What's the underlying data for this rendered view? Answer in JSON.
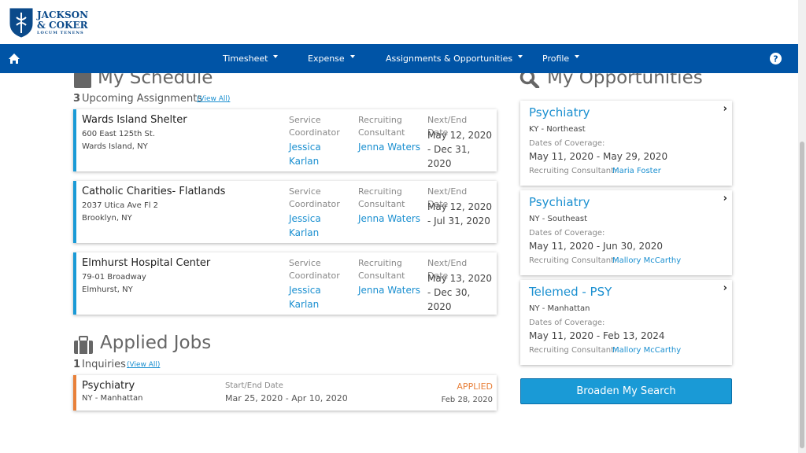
{
  "header": {
    "logo_line1": "JACKSON",
    "logo_line2": "& COKER",
    "logo_line3": "LOCUM TENENS"
  },
  "nav": {
    "items": [
      "Timesheet",
      "Expense",
      "Assignments & Opportunities",
      "Profile"
    ]
  },
  "schedule": {
    "title": "My Schedule",
    "count": "3",
    "count_label": "Upcoming Assignments",
    "view_all": "(View All)",
    "assignments": [
      {
        "name": "Wards Island Shelter",
        "address1": "600 East 125th St.",
        "address2": "Wards Island, NY",
        "coordinator_label": "Service Coordinator",
        "coordinator": "Jessica Karlan",
        "consultant_label": "Recruiting Consultant",
        "consultant": "Jenna Waters",
        "date_label": "Next/End Date",
        "dates": "May 12, 2020 - Dec 31, 2020"
      },
      {
        "name": "Catholic Charities- Flatlands",
        "address1": "2037 Utica Ave Fl 2",
        "address2": "Brooklyn, NY",
        "coordinator_label": "Service Coordinator",
        "coordinator": "Jessica Karlan",
        "consultant_label": "Recruiting Consultant",
        "consultant": "Jenna Waters",
        "date_label": "Next/End Date",
        "dates": "May 12, 2020 - Jul 31, 2020"
      },
      {
        "name": "Elmhurst Hospital Center",
        "address1": "79-01 Broadway",
        "address2": "Elmhurst, NY",
        "coordinator_label": "Service Coordinator",
        "coordinator": "Jessica Karlan",
        "consultant_label": "Recruiting Consultant",
        "consultant": "Jenna Waters",
        "date_label": "Next/End Date",
        "dates": "May 13, 2020 - Dec 30, 2020"
      }
    ]
  },
  "applied": {
    "title": "Applied Jobs",
    "count": "1",
    "count_label": "Inquiries",
    "view_all": "(View All)",
    "jobs": [
      {
        "title": "Psychiatry",
        "location": "NY - Manhattan",
        "date_label": "Start/End Date",
        "dates": "Mar 25, 2020 - Apr 10, 2020",
        "status": "APPLIED",
        "status_date": "Feb 28, 2020"
      }
    ]
  },
  "opportunities": {
    "title": "My Opportunities",
    "items": [
      {
        "title": "Psychiatry",
        "region": "KY - Northeast",
        "coverage_label": "Dates of Coverage:",
        "dates": "May 11, 2020 - May 29, 2020",
        "consultant_label": "Recruiting Consultant:",
        "consultant": "Maria Foster"
      },
      {
        "title": "Psychiatry",
        "region": "NY - Southeast",
        "coverage_label": "Dates of Coverage:",
        "dates": "May 11, 2020 - Jun 30, 2020",
        "consultant_label": "Recruiting Consultant:",
        "consultant": "Mallory McCarthy"
      },
      {
        "title": "Telemed - PSY",
        "region": "NY - Manhattan",
        "coverage_label": "Dates of Coverage:",
        "dates": "May 11, 2020 - Feb 13, 2024",
        "consultant_label": "Recruiting Consultant:",
        "consultant": "Mallory McCarthy"
      }
    ],
    "button": "Broaden My Search"
  }
}
